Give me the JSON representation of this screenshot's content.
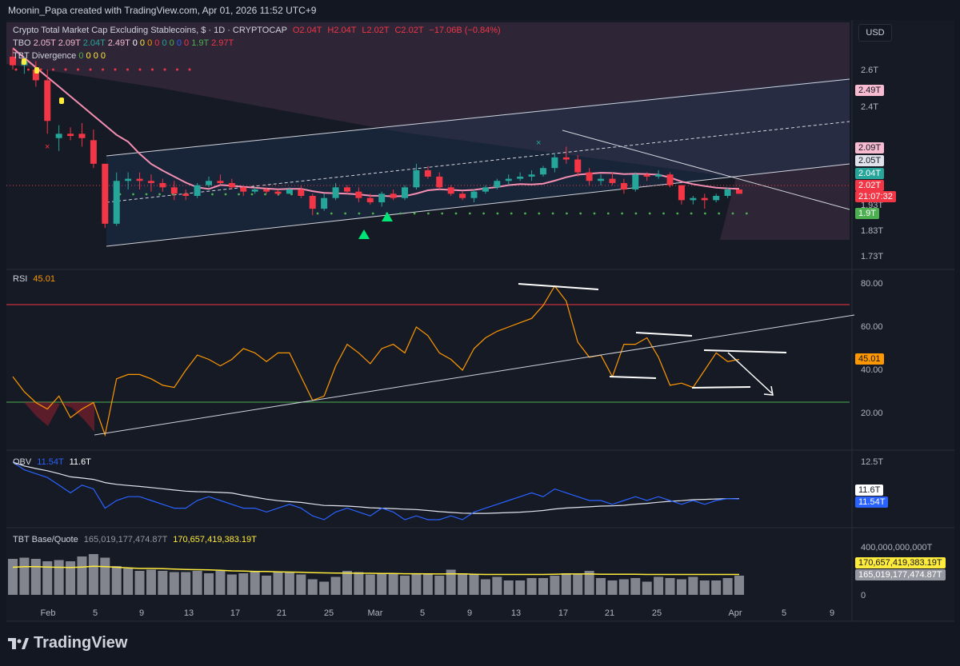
{
  "header": {
    "author_line": "Moonin_Papa created with TradingView.com, Apr 01, 2026 11:52 UTC+9"
  },
  "symbol": {
    "title": "Crypto Total Market Cap Excluding Stablecoins, $ · 1D · CRYPTOCAP",
    "o": "O2.04T",
    "h": "H2.04T",
    "l": "L2.02T",
    "c": "C2.02T",
    "change": "−17.06B (−0.84%)"
  },
  "tbo": {
    "label": "TBO",
    "v1": "2.05T",
    "v2": "2.09T",
    "v3": "2.04T",
    "v4": "2.49T",
    "zeros": [
      "0",
      "0",
      "0",
      "0",
      "0",
      "0",
      "0",
      "0"
    ],
    "v5": "1.9T",
    "v6": "2.97T"
  },
  "divergence": {
    "label": "TBT Divergence",
    "zeros": [
      "0",
      "0",
      "0",
      "0"
    ]
  },
  "currency": "USD",
  "price_axis": {
    "ticks": [
      "2.6T",
      "2.4T",
      "1.93T",
      "1.83T",
      "1.73T"
    ]
  },
  "price_tags": [
    {
      "label": "2.49T",
      "bg": "#f8bbd0",
      "fg": "#131722"
    },
    {
      "label": "2.09T",
      "bg": "#f8bbd0",
      "fg": "#131722"
    },
    {
      "label": "2.05T",
      "bg": "#e0e3eb",
      "fg": "#131722"
    },
    {
      "label": "2.04T",
      "bg": "#26a69a",
      "fg": "#ffffff"
    },
    {
      "label": "2.02T",
      "bg": "#f23645",
      "fg": "#ffffff"
    },
    {
      "label": "21:07:32",
      "bg": "#f23645",
      "fg": "#ffffff"
    },
    {
      "label": "1.9T",
      "bg": "#4caf50",
      "fg": "#ffffff"
    }
  ],
  "rsi": {
    "label": "RSI",
    "value": "45.01",
    "ticks": [
      "80.00",
      "60.00",
      "40.00",
      "20.00"
    ],
    "tag": "45.01"
  },
  "obv": {
    "label": "OBV",
    "v1": "11.54T",
    "v2": "11.6T",
    "ticks": [
      "12.5T"
    ],
    "tag_white": "11.6T",
    "tag_blue": "11.54T"
  },
  "basequote": {
    "label": "TBT Base/Quote",
    "v1": "165,019,177,474.87T",
    "v2": "170,657,419,383.19T",
    "ticks": [
      "400,000,000,000T",
      "0"
    ],
    "tag_yellow": "170,657,419,383.19T",
    "tag_gray": "165,019,177,474.87T"
  },
  "time_axis": [
    "Feb",
    "5",
    "9",
    "13",
    "17",
    "21",
    "25",
    "Mar",
    "5",
    "9",
    "13",
    "17",
    "21",
    "25",
    "Apr",
    "5",
    "9"
  ],
  "branding": "TradingView",
  "colors": {
    "up": "#26a69a",
    "down": "#f23645",
    "ma": "#f48fb1",
    "rsi": "#ff9800",
    "obv": "#2962ff",
    "bq": "#ffeb3b"
  },
  "chart_data": {
    "type": "candlestick",
    "title": "Crypto Total Market Cap Excluding Stablecoins, $ · 1D · CRYPTOCAP",
    "ylabel": "",
    "ylim": [
      1.7,
      2.72
    ],
    "candles": [
      {
        "o": 2.66,
        "h": 2.7,
        "l": 2.6,
        "c": 2.62
      },
      {
        "o": 2.62,
        "h": 2.66,
        "l": 2.58,
        "c": 2.64
      },
      {
        "o": 2.6,
        "h": 2.64,
        "l": 2.52,
        "c": 2.55
      },
      {
        "o": 2.55,
        "h": 2.6,
        "l": 2.3,
        "c": 2.36
      },
      {
        "o": 2.28,
        "h": 2.34,
        "l": 2.22,
        "c": 2.3
      },
      {
        "o": 2.3,
        "h": 2.33,
        "l": 2.27,
        "c": 2.29
      },
      {
        "o": 2.3,
        "h": 2.35,
        "l": 2.24,
        "c": 2.28
      },
      {
        "o": 2.27,
        "h": 2.32,
        "l": 2.14,
        "c": 2.16
      },
      {
        "o": 2.16,
        "h": 2.16,
        "l": 1.86,
        "c": 1.88
      },
      {
        "o": 1.88,
        "h": 2.12,
        "l": 1.87,
        "c": 2.08
      },
      {
        "o": 2.08,
        "h": 2.12,
        "l": 2.04,
        "c": 2.09
      },
      {
        "o": 2.09,
        "h": 2.12,
        "l": 2.04,
        "c": 2.08
      },
      {
        "o": 2.08,
        "h": 2.11,
        "l": 2.03,
        "c": 2.07
      },
      {
        "o": 2.07,
        "h": 2.09,
        "l": 2.03,
        "c": 2.05
      },
      {
        "o": 2.05,
        "h": 2.08,
        "l": 1.99,
        "c": 2.02
      },
      {
        "o": 2.02,
        "h": 2.04,
        "l": 1.99,
        "c": 2.01
      },
      {
        "o": 2.01,
        "h": 2.07,
        "l": 2.0,
        "c": 2.06
      },
      {
        "o": 2.06,
        "h": 2.1,
        "l": 2.05,
        "c": 2.08
      },
      {
        "o": 2.08,
        "h": 2.11,
        "l": 2.06,
        "c": 2.07
      },
      {
        "o": 2.07,
        "h": 2.09,
        "l": 2.04,
        "c": 2.05
      },
      {
        "o": 2.05,
        "h": 2.06,
        "l": 2.01,
        "c": 2.03
      },
      {
        "o": 2.03,
        "h": 2.05,
        "l": 2.02,
        "c": 2.04
      },
      {
        "o": 2.04,
        "h": 2.05,
        "l": 2.02,
        "c": 2.03
      },
      {
        "o": 2.03,
        "h": 2.04,
        "l": 2.01,
        "c": 2.02
      },
      {
        "o": 2.02,
        "h": 2.05,
        "l": 2.02,
        "c": 2.04
      },
      {
        "o": 2.04,
        "h": 2.06,
        "l": 2.0,
        "c": 2.01
      },
      {
        "o": 2.01,
        "h": 2.02,
        "l": 1.92,
        "c": 1.95
      },
      {
        "o": 1.95,
        "h": 2.02,
        "l": 1.94,
        "c": 2.0
      },
      {
        "o": 2.0,
        "h": 2.07,
        "l": 1.99,
        "c": 2.05
      },
      {
        "o": 2.05,
        "h": 2.06,
        "l": 2.02,
        "c": 2.03
      },
      {
        "o": 2.03,
        "h": 2.05,
        "l": 1.98,
        "c": 2.0
      },
      {
        "o": 2.0,
        "h": 2.02,
        "l": 1.97,
        "c": 1.98
      },
      {
        "o": 1.98,
        "h": 2.03,
        "l": 1.96,
        "c": 2.02
      },
      {
        "o": 2.02,
        "h": 2.04,
        "l": 1.99,
        "c": 2.0
      },
      {
        "o": 2.0,
        "h": 2.06,
        "l": 1.99,
        "c": 2.05
      },
      {
        "o": 2.05,
        "h": 2.16,
        "l": 2.04,
        "c": 2.13
      },
      {
        "o": 2.13,
        "h": 2.15,
        "l": 2.09,
        "c": 2.1
      },
      {
        "o": 2.1,
        "h": 2.12,
        "l": 2.04,
        "c": 2.05
      },
      {
        "o": 2.05,
        "h": 2.06,
        "l": 2.01,
        "c": 2.02
      },
      {
        "o": 2.02,
        "h": 2.03,
        "l": 1.99,
        "c": 2.0
      },
      {
        "o": 2.0,
        "h": 2.04,
        "l": 1.98,
        "c": 2.03
      },
      {
        "o": 2.03,
        "h": 2.06,
        "l": 2.02,
        "c": 2.05
      },
      {
        "o": 2.05,
        "h": 2.09,
        "l": 2.04,
        "c": 2.08
      },
      {
        "o": 2.08,
        "h": 2.11,
        "l": 2.06,
        "c": 2.09
      },
      {
        "o": 2.09,
        "h": 2.12,
        "l": 2.08,
        "c": 2.1
      },
      {
        "o": 2.1,
        "h": 2.13,
        "l": 2.08,
        "c": 2.11
      },
      {
        "o": 2.11,
        "h": 2.15,
        "l": 2.1,
        "c": 2.14
      },
      {
        "o": 2.14,
        "h": 2.21,
        "l": 2.12,
        "c": 2.19
      },
      {
        "o": 2.19,
        "h": 2.24,
        "l": 2.16,
        "c": 2.18
      },
      {
        "o": 2.18,
        "h": 2.2,
        "l": 2.1,
        "c": 2.12
      },
      {
        "o": 2.12,
        "h": 2.14,
        "l": 2.06,
        "c": 2.08
      },
      {
        "o": 2.08,
        "h": 2.11,
        "l": 2.06,
        "c": 2.09
      },
      {
        "o": 2.09,
        "h": 2.12,
        "l": 2.06,
        "c": 2.07
      },
      {
        "o": 2.07,
        "h": 2.09,
        "l": 2.02,
        "c": 2.04
      },
      {
        "o": 2.04,
        "h": 2.12,
        "l": 2.03,
        "c": 2.11
      },
      {
        "o": 2.11,
        "h": 2.12,
        "l": 2.08,
        "c": 2.1
      },
      {
        "o": 2.1,
        "h": 2.13,
        "l": 2.09,
        "c": 2.11
      },
      {
        "o": 2.11,
        "h": 2.12,
        "l": 2.05,
        "c": 2.06
      },
      {
        "o": 2.06,
        "h": 2.06,
        "l": 1.97,
        "c": 1.99
      },
      {
        "o": 1.99,
        "h": 2.01,
        "l": 1.97,
        "c": 2.0
      },
      {
        "o": 2.0,
        "h": 2.02,
        "l": 1.95,
        "c": 1.99
      },
      {
        "o": 1.99,
        "h": 2.02,
        "l": 1.98,
        "c": 2.01
      },
      {
        "o": 2.01,
        "h": 2.05,
        "l": 2.0,
        "c": 2.04
      },
      {
        "o": 2.04,
        "h": 2.04,
        "l": 2.02,
        "c": 2.02
      }
    ],
    "rsi": [
      37,
      30,
      25,
      22,
      28,
      18,
      22,
      25,
      10,
      36,
      38,
      38,
      36,
      33,
      32,
      40,
      47,
      45,
      42,
      45,
      50,
      48,
      44,
      48,
      48,
      37,
      26,
      28,
      42,
      52,
      48,
      43,
      50,
      52,
      48,
      60,
      56,
      48,
      45,
      40,
      50,
      55,
      58,
      60,
      62,
      64,
      70,
      79,
      72,
      53,
      46,
      47,
      37,
      52,
      52,
      55,
      46,
      33,
      34,
      32,
      40,
      48,
      44,
      45
    ],
    "obv": [
      12.5,
      12.3,
      12.2,
      12.1,
      11.9,
      11.7,
      11.9,
      11.8,
      11.3,
      11.5,
      11.6,
      11.6,
      11.5,
      11.4,
      11.3,
      11.3,
      11.5,
      11.6,
      11.5,
      11.4,
      11.3,
      11.3,
      11.2,
      11.3,
      11.4,
      11.3,
      11.1,
      11.0,
      11.2,
      11.3,
      11.2,
      11.1,
      11.3,
      11.2,
      11.0,
      11.1,
      11.0,
      11.0,
      11.1,
      11.0,
      11.2,
      11.3,
      11.4,
      11.5,
      11.6,
      11.7,
      11.6,
      11.8,
      11.7,
      11.6,
      11.5,
      11.5,
      11.4,
      11.5,
      11.6,
      11.5,
      11.6,
      11.5,
      11.4,
      11.5,
      11.4,
      11.5,
      11.55,
      11.54
    ],
    "bq_bars": [
      300,
      310,
      300,
      280,
      290,
      280,
      320,
      340,
      310,
      240,
      220,
      200,
      210,
      200,
      190,
      190,
      200,
      180,
      200,
      170,
      180,
      200,
      160,
      190,
      190,
      170,
      130,
      110,
      150,
      200,
      190,
      170,
      180,
      180,
      160,
      180,
      180,
      160,
      210,
      180,
      170,
      130,
      150,
      120,
      120,
      140,
      140,
      160,
      180,
      170,
      200,
      140,
      120,
      130,
      140,
      110,
      150,
      140,
      130,
      150,
      120,
      120,
      140,
      160
    ],
    "bq_line": [
      230,
      235,
      235,
      232,
      230,
      228,
      232,
      238,
      235,
      230,
      225,
      220,
      220,
      218,
      215,
      212,
      210,
      208,
      205,
      200,
      198,
      195,
      195,
      192,
      190,
      188,
      185,
      183,
      182,
      182,
      180,
      180,
      178,
      178,
      176,
      176,
      175,
      174,
      175,
      175,
      172,
      170,
      170,
      170,
      170,
      170,
      170,
      172,
      174,
      174,
      174,
      172,
      172,
      172,
      172,
      170,
      170,
      170,
      170,
      170,
      170,
      170,
      170,
      170
    ]
  }
}
